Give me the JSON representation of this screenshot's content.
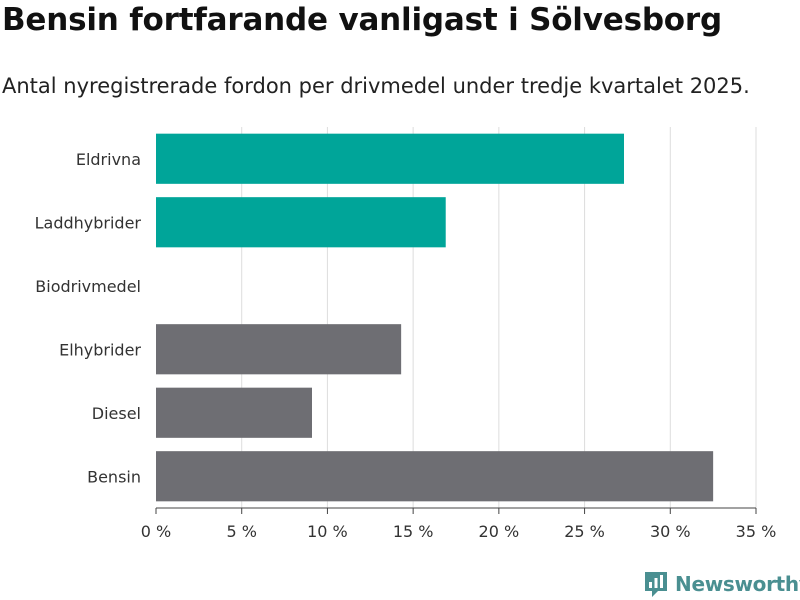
{
  "title": "Bensin fortfarande vanligast i Sölvesborg",
  "subtitle": "Antal nyregistrerade fordon per drivmedel under tredje kvartalet 2025.",
  "brand": {
    "name": "Newsworthy",
    "color": "#4a8f91",
    "icon": "newsworthy-logo-icon"
  },
  "chart_data": {
    "type": "bar",
    "orientation": "horizontal",
    "categories": [
      "Eldrivna",
      "Laddhybrider",
      "Biodrivmedel",
      "Elhybrider",
      "Diesel",
      "Bensin"
    ],
    "values": [
      27.3,
      16.9,
      0,
      14.3,
      9.1,
      32.5
    ],
    "bar_colors": [
      "#00a599",
      "#00a599",
      "#6e6e73",
      "#6e6e73",
      "#6e6e73",
      "#6e6e73"
    ],
    "xlim": [
      0,
      35
    ],
    "xticks": [
      0,
      5,
      10,
      15,
      20,
      25,
      30,
      35
    ],
    "tick_labels": [
      "0 %",
      "5 %",
      "10 %",
      "15 %",
      "20 %",
      "25 %",
      "30 %",
      "35 %"
    ],
    "grid": true,
    "xlabel": "",
    "ylabel": ""
  }
}
